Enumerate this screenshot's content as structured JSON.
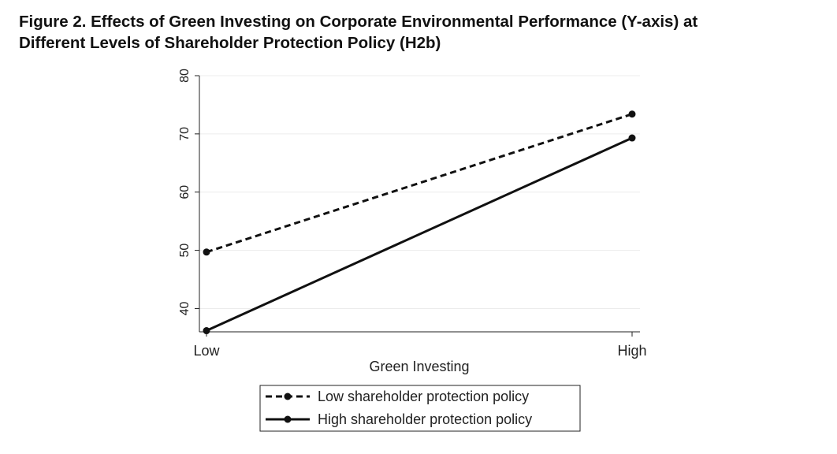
{
  "figure": {
    "title_line1": "Figure 2.  Effects of Green Investing on Corporate Environmental Performance (Y-axis) at",
    "title_line2": "Different Levels of Shareholder Protection Policy (H2b)"
  },
  "chart_data": {
    "type": "line",
    "categories": [
      "Low",
      "High"
    ],
    "xlabel": "Green Investing",
    "ylabel": "",
    "ylim": [
      36,
      80
    ],
    "yticks": [
      40,
      50,
      60,
      70,
      80
    ],
    "grid": "horizontal",
    "legend_position": "bottom",
    "series": [
      {
        "name": "Low shareholder protection policy",
        "values": [
          49.7,
          73.4
        ],
        "line_style": "dashed",
        "color": "#111111"
      },
      {
        "name": "High shareholder protection policy",
        "values": [
          36.2,
          69.3
        ],
        "line_style": "solid",
        "color": "#111111"
      }
    ]
  }
}
